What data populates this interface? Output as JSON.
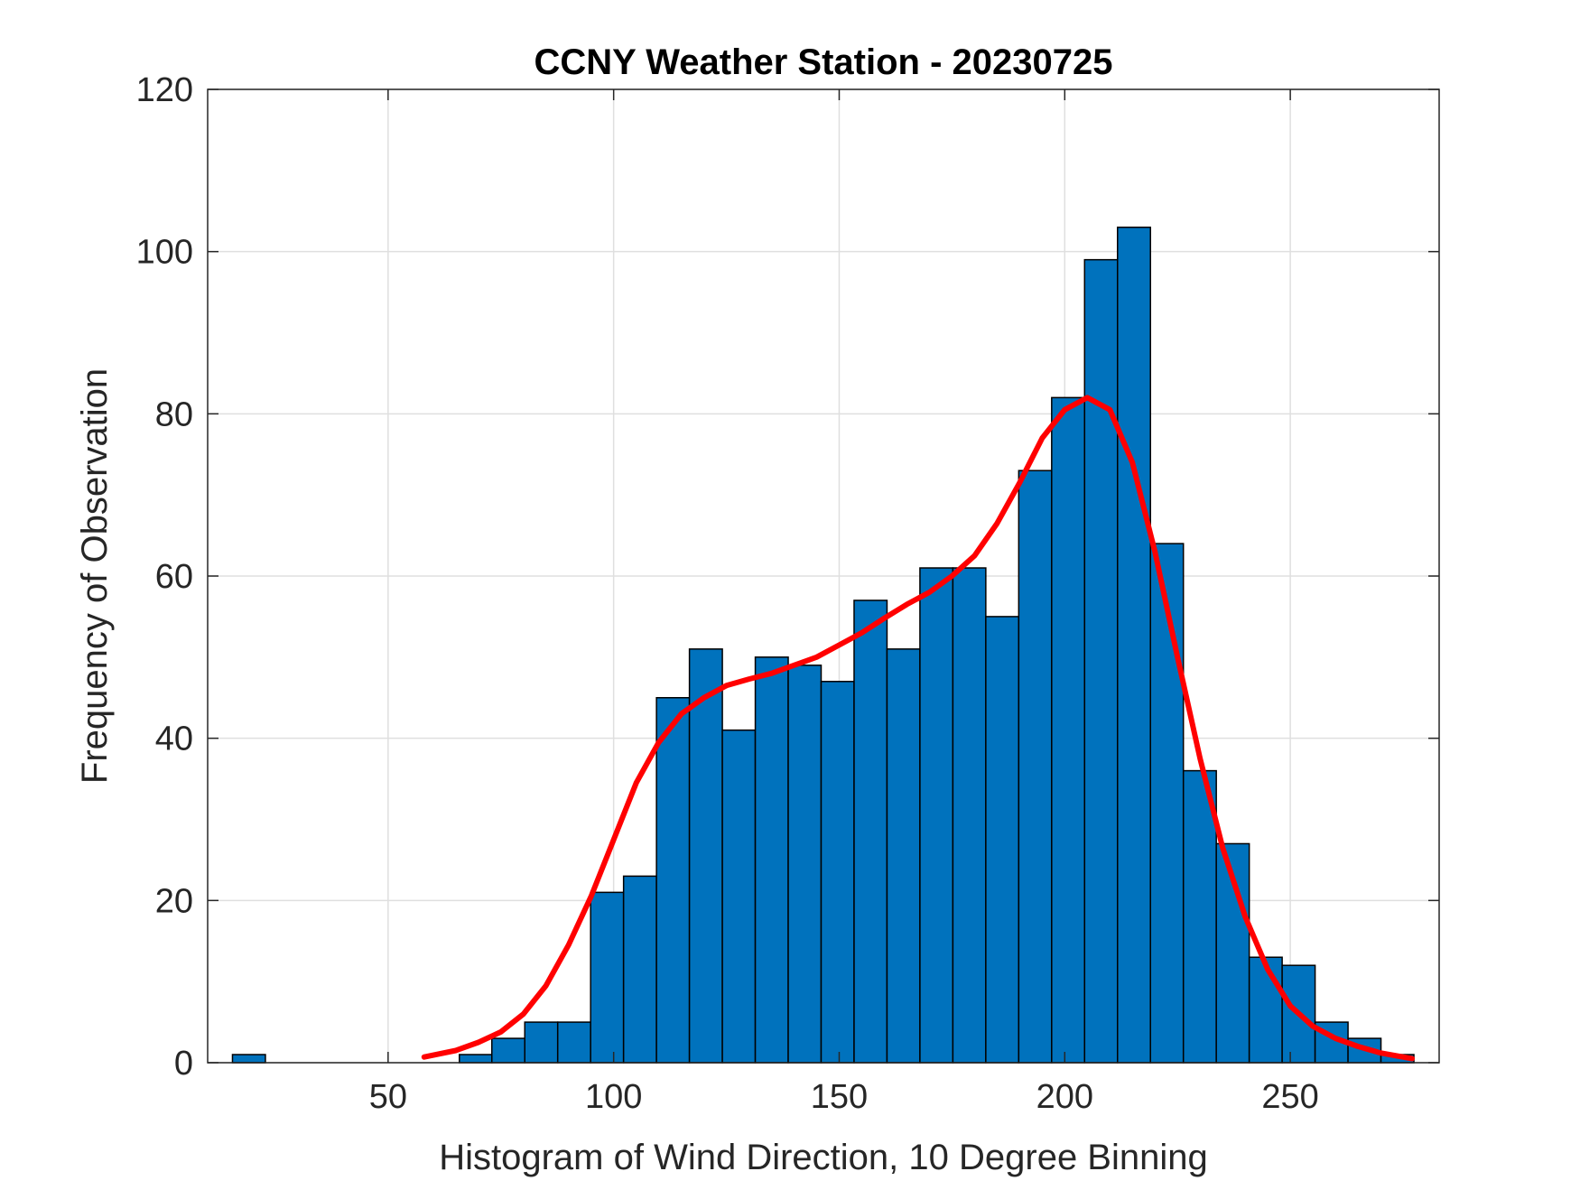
{
  "chart_data": {
    "type": "bar",
    "title": "CCNY Weather Station - 20230725",
    "xlabel": "Histogram of Wind Direction, 10 Degree Binning",
    "ylabel": "Frequency of Observation",
    "xlim": [
      10,
      283
    ],
    "ylim": [
      0,
      120
    ],
    "xticks": [
      50,
      100,
      150,
      200,
      250
    ],
    "yticks": [
      0,
      20,
      40,
      60,
      80,
      100,
      120
    ],
    "grid": true,
    "bar_color": "#0072BD",
    "bar_edge_color": "#000000",
    "curve_color": "#FF0000",
    "bins": [
      {
        "x0": 15.5,
        "x1": 22.8,
        "count": 1
      },
      {
        "x0": 65.8,
        "x1": 73.0,
        "count": 1
      },
      {
        "x0": 73.0,
        "x1": 80.3,
        "count": 3
      },
      {
        "x0": 80.3,
        "x1": 87.6,
        "count": 5
      },
      {
        "x0": 87.6,
        "x1": 94.9,
        "count": 5
      },
      {
        "x0": 94.9,
        "x1": 102.2,
        "count": 21
      },
      {
        "x0": 102.2,
        "x1": 109.5,
        "count": 23
      },
      {
        "x0": 109.5,
        "x1": 116.8,
        "count": 45
      },
      {
        "x0": 116.8,
        "x1": 124.1,
        "count": 51
      },
      {
        "x0": 124.1,
        "x1": 131.4,
        "count": 41
      },
      {
        "x0": 131.4,
        "x1": 138.7,
        "count": 50
      },
      {
        "x0": 138.7,
        "x1": 146.0,
        "count": 49
      },
      {
        "x0": 146.0,
        "x1": 153.3,
        "count": 47
      },
      {
        "x0": 153.3,
        "x1": 160.6,
        "count": 57
      },
      {
        "x0": 160.6,
        "x1": 167.9,
        "count": 51
      },
      {
        "x0": 167.9,
        "x1": 175.2,
        "count": 61
      },
      {
        "x0": 175.2,
        "x1": 182.5,
        "count": 61
      },
      {
        "x0": 182.5,
        "x1": 189.8,
        "count": 55
      },
      {
        "x0": 189.8,
        "x1": 197.1,
        "count": 73
      },
      {
        "x0": 197.1,
        "x1": 204.4,
        "count": 82
      },
      {
        "x0": 204.4,
        "x1": 211.7,
        "count": 99
      },
      {
        "x0": 211.7,
        "x1": 219.0,
        "count": 103
      },
      {
        "x0": 219.0,
        "x1": 226.3,
        "count": 64
      },
      {
        "x0": 226.3,
        "x1": 233.6,
        "count": 36
      },
      {
        "x0": 233.6,
        "x1": 240.9,
        "count": 27
      },
      {
        "x0": 240.9,
        "x1": 248.2,
        "count": 13
      },
      {
        "x0": 248.2,
        "x1": 255.5,
        "count": 12
      },
      {
        "x0": 255.5,
        "x1": 262.8,
        "count": 5
      },
      {
        "x0": 262.8,
        "x1": 270.1,
        "count": 3
      },
      {
        "x0": 270.1,
        "x1": 277.4,
        "count": 1
      }
    ],
    "fit_curve": {
      "x": [
        58,
        65,
        70,
        75,
        80,
        85,
        90,
        95,
        100,
        105,
        110,
        115,
        120,
        125,
        130,
        135,
        140,
        145,
        150,
        155,
        160,
        165,
        170,
        175,
        180,
        185,
        190,
        195,
        200,
        205,
        210,
        215,
        220,
        225,
        230,
        235,
        240,
        245,
        250,
        255,
        260,
        265,
        270,
        277
      ],
      "y": [
        0.7,
        1.5,
        2.5,
        3.8,
        6.0,
        9.5,
        14.5,
        20.5,
        27.5,
        34.5,
        39.5,
        43.0,
        45.0,
        46.5,
        47.3,
        48.0,
        49.0,
        50.0,
        51.5,
        53.0,
        54.8,
        56.5,
        58.0,
        60.0,
        62.5,
        66.5,
        71.5,
        77.0,
        80.5,
        82.0,
        80.5,
        74.0,
        63.0,
        50.0,
        37.5,
        26.5,
        18.0,
        11.5,
        7.0,
        4.5,
        3.0,
        2.0,
        1.2,
        0.5
      ]
    }
  }
}
